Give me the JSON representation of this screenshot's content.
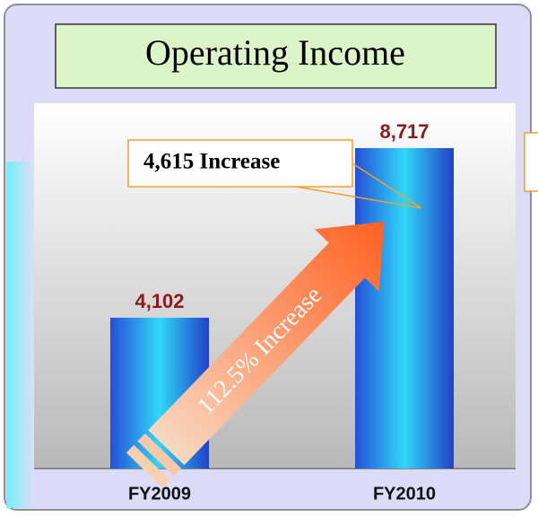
{
  "chart_data": {
    "type": "bar",
    "title": "Operating Income",
    "categories": [
      "FY2009",
      "FY2010"
    ],
    "values": [
      4102,
      8717
    ],
    "value_labels": [
      "4,102",
      "8,717"
    ],
    "annotations": [
      "4,615 Increase",
      "112.5% Increase"
    ]
  }
}
